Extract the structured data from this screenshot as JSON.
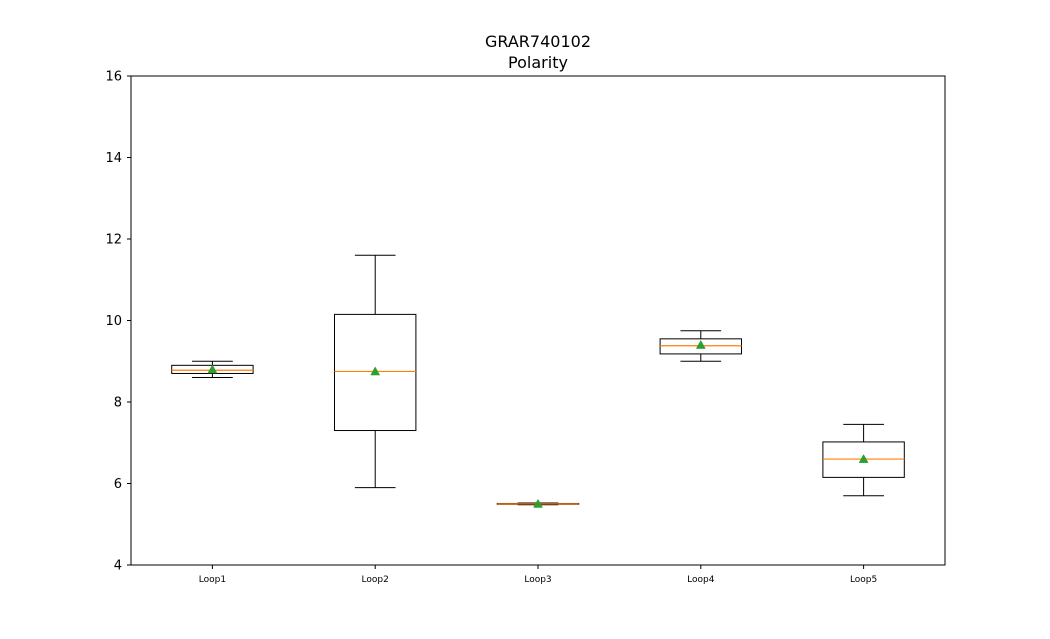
{
  "chart_data": {
    "type": "box",
    "title": "GRAR740102",
    "subtitle": "Polarity",
    "xlabel": "",
    "ylabel": "",
    "ylim": [
      4,
      16
    ],
    "yticks": [
      "4",
      "6",
      "8",
      "10",
      "12",
      "14",
      "16"
    ],
    "categories": [
      "Loop1",
      "Loop2",
      "Loop3",
      "Loop4",
      "Loop5"
    ],
    "boxes": [
      {
        "category": "Loop1",
        "whisker_low": 8.6,
        "q1": 8.7,
        "median": 8.78,
        "q3": 8.9,
        "whisker_high": 9.0,
        "mean": 8.8
      },
      {
        "category": "Loop2",
        "whisker_low": 5.9,
        "q1": 7.3,
        "median": 8.75,
        "q3": 10.15,
        "whisker_high": 11.6,
        "mean": 8.75
      },
      {
        "category": "Loop3",
        "whisker_low": 5.48,
        "q1": 5.49,
        "median": 5.5,
        "q3": 5.51,
        "whisker_high": 5.52,
        "mean": 5.5
      },
      {
        "category": "Loop4",
        "whisker_low": 9.0,
        "q1": 9.18,
        "median": 9.38,
        "q3": 9.55,
        "whisker_high": 9.75,
        "mean": 9.4
      },
      {
        "category": "Loop5",
        "whisker_low": 5.7,
        "q1": 6.15,
        "median": 6.6,
        "q3": 7.02,
        "whisker_high": 7.45,
        "mean": 6.6
      }
    ],
    "grid": false,
    "colors": {
      "box": "#000000",
      "median": "#ff7f0e",
      "mean": "#2ca02c",
      "axes": "#000000"
    }
  }
}
